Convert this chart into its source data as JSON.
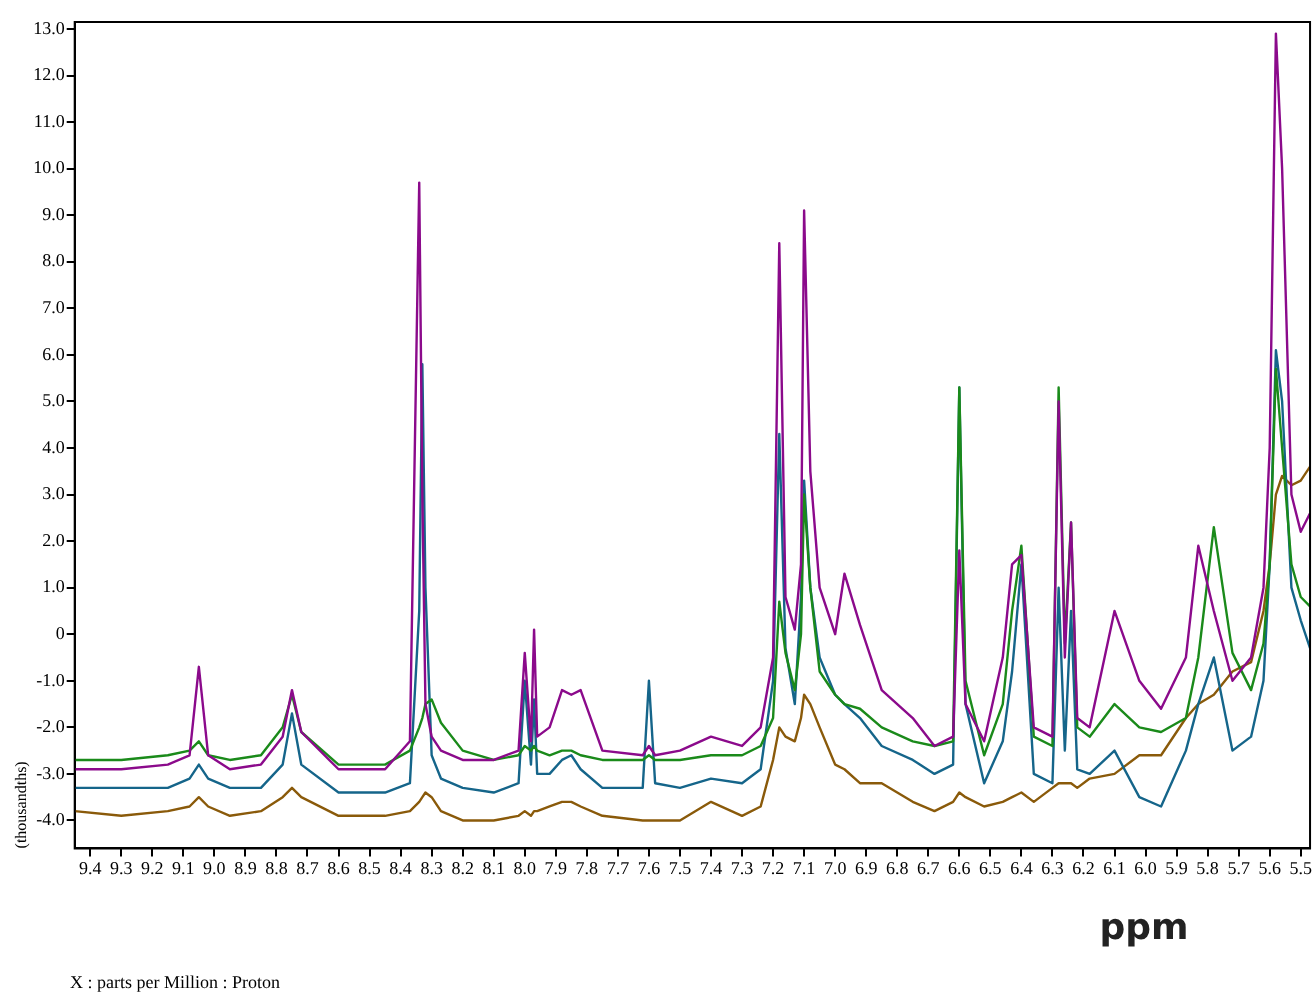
{
  "chart_data": {
    "type": "line",
    "xlabel": "ppm",
    "ylabel": "(thousandths)",
    "annotations": [
      "X : parts per Million : Proton"
    ],
    "x": [
      9.45,
      9.3,
      9.15,
      9.08,
      9.05,
      9.02,
      8.95,
      8.85,
      8.78,
      8.75,
      8.72,
      8.6,
      8.45,
      8.37,
      8.34,
      8.33,
      8.32,
      8.3,
      8.27,
      8.2,
      8.1,
      8.02,
      8.0,
      7.98,
      7.97,
      7.96,
      7.92,
      7.88,
      7.85,
      7.82,
      7.75,
      7.62,
      7.6,
      7.58,
      7.5,
      7.4,
      7.3,
      7.24,
      7.2,
      7.18,
      7.16,
      7.13,
      7.11,
      7.1,
      7.08,
      7.05,
      7.0,
      6.97,
      6.92,
      6.85,
      6.75,
      6.68,
      6.62,
      6.6,
      6.58,
      6.52,
      6.46,
      6.43,
      6.4,
      6.36,
      6.3,
      6.28,
      6.26,
      6.24,
      6.22,
      6.18,
      6.1,
      6.02,
      5.95,
      5.87,
      5.83,
      5.78,
      5.72,
      5.66,
      5.62,
      5.6,
      5.58,
      5.56,
      5.53,
      5.5,
      5.47
    ],
    "series": [
      {
        "color": "#8b0a8b",
        "values": [
          -2.9,
          -2.9,
          -2.8,
          -2.6,
          -0.7,
          -2.6,
          -2.9,
          -2.8,
          -2.2,
          -1.2,
          -2.1,
          -2.9,
          -2.9,
          -2.3,
          9.7,
          3.0,
          -1.5,
          -2.2,
          -2.5,
          -2.7,
          -2.7,
          -2.5,
          -0.4,
          -2.3,
          0.1,
          -2.2,
          -2.0,
          -1.2,
          -1.3,
          -1.2,
          -2.5,
          -2.6,
          -2.4,
          -2.6,
          -2.5,
          -2.2,
          -2.4,
          -2.0,
          -0.5,
          8.4,
          0.8,
          0.1,
          1.5,
          9.1,
          3.5,
          1.0,
          0.0,
          1.3,
          0.2,
          -1.2,
          -1.8,
          -2.4,
          -2.2,
          1.8,
          -1.5,
          -2.3,
          -0.5,
          1.5,
          1.7,
          -2.0,
          -2.2,
          5.0,
          -0.5,
          2.4,
          -1.8,
          -2.0,
          0.5,
          -1.0,
          -1.6,
          -0.5,
          1.9,
          0.5,
          -1.0,
          -0.5,
          1.0,
          4.0,
          12.9,
          10.0,
          3.0,
          2.2,
          2.6
        ]
      },
      {
        "color": "#1a8a1a",
        "values": [
          -2.7,
          -2.7,
          -2.6,
          -2.5,
          -2.3,
          -2.6,
          -2.7,
          -2.6,
          -2.0,
          -1.3,
          -2.1,
          -2.8,
          -2.8,
          -2.5,
          -2.0,
          -1.8,
          -1.5,
          -1.4,
          -1.9,
          -2.5,
          -2.7,
          -2.6,
          -2.4,
          -2.5,
          -2.4,
          -2.5,
          -2.6,
          -2.5,
          -2.5,
          -2.6,
          -2.7,
          -2.7,
          -2.6,
          -2.7,
          -2.7,
          -2.6,
          -2.6,
          -2.4,
          -1.8,
          0.7,
          -0.4,
          -1.2,
          0.0,
          3.0,
          1.0,
          -0.8,
          -1.3,
          -1.5,
          -1.6,
          -2.0,
          -2.3,
          -2.4,
          -2.3,
          5.3,
          -1.0,
          -2.6,
          -1.5,
          0.5,
          1.9,
          -2.2,
          -2.4,
          5.3,
          -0.2,
          2.4,
          -2.0,
          -2.2,
          -1.5,
          -2.0,
          -2.1,
          -1.8,
          -0.5,
          2.3,
          -0.4,
          -1.2,
          -0.2,
          1.5,
          5.7,
          4.0,
          1.5,
          0.8,
          0.6
        ]
      },
      {
        "color": "#15658a",
        "values": [
          -3.3,
          -3.3,
          -3.3,
          -3.1,
          -2.8,
          -3.1,
          -3.3,
          -3.3,
          -2.8,
          -1.7,
          -2.8,
          -3.4,
          -3.4,
          -3.2,
          0.5,
          5.8,
          1.0,
          -2.6,
          -3.1,
          -3.3,
          -3.4,
          -3.2,
          -1.0,
          -2.8,
          -1.4,
          -3.0,
          -3.0,
          -2.7,
          -2.6,
          -2.9,
          -3.3,
          -3.3,
          -1.0,
          -3.2,
          -3.3,
          -3.1,
          -3.2,
          -2.9,
          -1.0,
          4.3,
          -0.3,
          -1.5,
          0.8,
          3.3,
          1.0,
          -0.5,
          -1.3,
          -1.5,
          -1.8,
          -2.4,
          -2.7,
          -3.0,
          -2.8,
          5.3,
          -1.5,
          -3.2,
          -2.3,
          -0.8,
          1.5,
          -3.0,
          -3.2,
          1.0,
          -2.5,
          0.5,
          -2.9,
          -3.0,
          -2.5,
          -3.5,
          -3.7,
          -2.5,
          -1.5,
          -0.5,
          -2.5,
          -2.2,
          -1.0,
          1.5,
          6.1,
          5.0,
          1.0,
          0.3,
          -0.3
        ]
      },
      {
        "color": "#8a5a0a",
        "values": [
          -3.8,
          -3.9,
          -3.8,
          -3.7,
          -3.5,
          -3.7,
          -3.9,
          -3.8,
          -3.5,
          -3.3,
          -3.5,
          -3.9,
          -3.9,
          -3.8,
          -3.6,
          -3.5,
          -3.4,
          -3.5,
          -3.8,
          -4.0,
          -4.0,
          -3.9,
          -3.8,
          -3.9,
          -3.8,
          -3.8,
          -3.7,
          -3.6,
          -3.6,
          -3.7,
          -3.9,
          -4.0,
          -4.0,
          -4.0,
          -4.0,
          -3.6,
          -3.9,
          -3.7,
          -2.7,
          -2.0,
          -2.2,
          -2.3,
          -1.8,
          -1.3,
          -1.5,
          -2.0,
          -2.8,
          -2.9,
          -3.2,
          -3.2,
          -3.6,
          -3.8,
          -3.6,
          -3.4,
          -3.5,
          -3.7,
          -3.6,
          -3.5,
          -3.4,
          -3.6,
          -3.3,
          -3.2,
          -3.2,
          -3.2,
          -3.3,
          -3.1,
          -3.0,
          -2.6,
          -2.6,
          -1.8,
          -1.5,
          -1.3,
          -0.8,
          -0.6,
          0.5,
          1.5,
          3.0,
          3.4,
          3.2,
          3.3,
          3.6
        ]
      }
    ],
    "xlim": [
      9.45,
      5.47
    ],
    "xticks": [
      9.4,
      9.3,
      9.2,
      9.1,
      {
        "value": 9,
        "label": "9.0"
      },
      8.9,
      8.8,
      8.7,
      8.6,
      8.5,
      8.4,
      8.3,
      8.2,
      8.1,
      {
        "value": 8,
        "label": "8.0"
      },
      7.9,
      7.8,
      7.7,
      7.6,
      7.5,
      7.4,
      7.3,
      7.2,
      7.1,
      {
        "value": 7,
        "label": "7.0"
      },
      6.9,
      6.8,
      6.7,
      6.6,
      6.5,
      6.4,
      6.3,
      6.2,
      6.1,
      {
        "value": 6,
        "label": "6.0"
      },
      5.9,
      5.8,
      5.7,
      5.6,
      5.5
    ],
    "ylim": [
      -4.6,
      13.15
    ],
    "yticks": [
      {
        "value": -4,
        "label": "-4.0"
      },
      {
        "value": -3,
        "label": "-3.0"
      },
      {
        "value": -2,
        "label": "-2.0"
      },
      {
        "value": -1,
        "label": "-1.0"
      },
      0,
      {
        "value": 1,
        "label": "1.0"
      },
      {
        "value": 2,
        "label": "2.0"
      },
      {
        "value": 3,
        "label": "3.0"
      },
      {
        "value": 4,
        "label": "4.0"
      },
      {
        "value": 5,
        "label": "5.0"
      },
      {
        "value": 6,
        "label": "6.0"
      },
      {
        "value": 7,
        "label": "7.0"
      },
      {
        "value": 8,
        "label": "8.0"
      },
      {
        "value": 9,
        "label": "9.0"
      },
      {
        "value": 10,
        "label": "10.0"
      },
      {
        "value": 11,
        "label": "11.0"
      },
      {
        "value": 12,
        "label": "12.0"
      },
      {
        "value": 13,
        "label": "13.0"
      }
    ]
  }
}
